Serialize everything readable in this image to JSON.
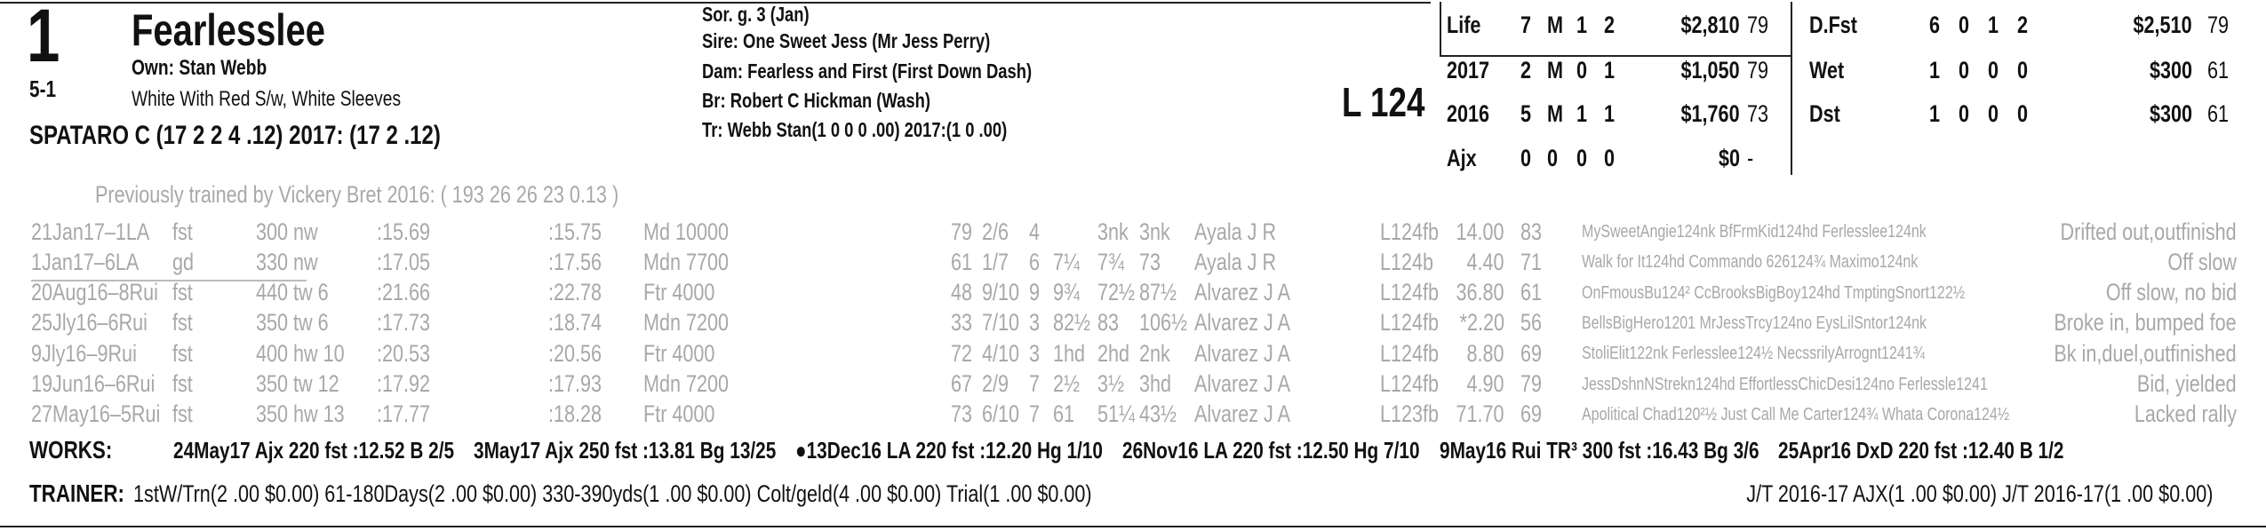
{
  "header": {
    "post": "1",
    "horse": "Fearlesslee",
    "odds": "5-1",
    "owner": "Own: Stan Webb",
    "silks": "White With Red S/w, White Sleeves",
    "jockey": "SPATARO C (17 2 2 4 .12) 2017: (17 2 .12)"
  },
  "breeding": [
    "Sor. g. 3 (Jan)",
    "Sire: One Sweet Jess (Mr Jess Perry)",
    "Dam: Fearless and First (First Down Dash)",
    "Br:   Robert C Hickman (Wash)",
    "Tr:   Webb Stan(1 0 0 0 .00) 2017:(1 0 .00)"
  ],
  "weight": "L 124",
  "record_left": [
    [
      "Life",
      "7",
      "M",
      "1",
      "2",
      "$2,810",
      "79"
    ],
    [
      "2017",
      "2",
      "M",
      "0",
      "1",
      "$1,050",
      "79"
    ],
    [
      "2016",
      "5",
      "M",
      "1",
      "1",
      "$1,760",
      "73"
    ],
    [
      "Ajx",
      "0",
      "0",
      "0",
      "0",
      "$0",
      "-"
    ]
  ],
  "record_right": [
    [
      "D.Fst",
      "6",
      "0",
      "1",
      "2",
      "$2,510",
      "79"
    ],
    [
      "Wet",
      "1",
      "0",
      "0",
      "0",
      "$300",
      "61"
    ],
    [
      "Dst",
      "1",
      "0",
      "0",
      "0",
      "$300",
      "61"
    ]
  ],
  "previous_trainer": "Previously trained by Vickery Bret 2016: ( 193 26 26 23 0.13 )",
  "races": [
    [
      "21Jan17–1LA",
      "fst",
      "300 nw",
      ":15.69",
      ":15.75",
      "Md 10000",
      "79",
      "2/6",
      "4",
      "",
      "3nk",
      "3nk",
      "Ayala J R",
      "L124fb",
      "14.00",
      "83",
      "MySweetAngie124nk BfFrmKid124hd Ferlesslee124nk",
      "Drifted out,outfinishd"
    ],
    [
      "1Jan17–6LA",
      "gd",
      "330 nw",
      ":17.05",
      ":17.56",
      "Mdn 7700",
      "61",
      "1/7",
      "6",
      "7¼",
      "7¾",
      "73",
      "Ayala J R",
      "L124b",
      "4.40",
      "71",
      "Walk for It124hd Commando 626124¾ Maximo124nk",
      "Off slow"
    ],
    [
      "20Aug16–8Rui",
      "fst",
      "440 tw 6",
      ":21.66",
      ":22.78",
      "Ftr 4000",
      "48",
      "9/10",
      "9",
      "9¾",
      "72½",
      "87½",
      "Alvarez J A",
      "L124fb",
      "36.80",
      "61",
      "OnFmousBu124² CcBrooksBigBoy124hd TmptingSnort122½",
      "Off slow, no bid"
    ],
    [
      "25Jly16–6Rui",
      "fst",
      "350 tw 6",
      ":17.73",
      ":18.74",
      "Mdn 7200",
      "33",
      "7/10",
      "3",
      "82½",
      "83",
      "106½",
      "Alvarez J A",
      "L124fb",
      "*2.20",
      "56",
      "BellsBigHero1201 MrJessTrcy124no EysLilSntor124nk",
      "Broke in, bumped foe"
    ],
    [
      "9Jly16–9Rui",
      "fst",
      "400 hw 10",
      ":20.53",
      ":20.56",
      "Ftr 4000",
      "72",
      "4/10",
      "3",
      "1hd",
      "2hd",
      "2nk",
      "Alvarez J A",
      "L124fb",
      "8.80",
      "69",
      "StoliElit122nk Ferlesslee124½ NecssrilyArrognt1241¾",
      "Bk in,duel,outfinished"
    ],
    [
      "19Jun16–6Rui",
      "fst",
      "350 tw 12",
      ":17.92",
      ":17.93",
      "Mdn 7200",
      "67",
      "2/9",
      "7",
      "2½",
      "3½",
      "3hd",
      "Alvarez J A",
      "L124fb",
      "4.90",
      "79",
      "JessDshnNStrekn124hd EffortlessChicDesi124no Ferlessle1241",
      "Bid, yielded"
    ],
    [
      "27May16–5Rui",
      "fst",
      "350 hw 13",
      ":17.77",
      ":18.28",
      "Ftr 4000",
      "73",
      "6/10",
      "7",
      "61",
      "51¼",
      "43½",
      "Alvarez J A",
      "L123fb",
      "71.70",
      "69",
      "Apolitical Chad120²½ Just Call Me Carter124¾ Whata Corona124½",
      "Lacked rally"
    ]
  ],
  "works_label": "WORKS:",
  "works": [
    "24May17 Ajx 220 fst :12.52 B 2/5",
    "3May17 Ajx 250 fst :13.81 Bg 13/25",
    "●13Dec16 LA 220 fst :12.20 Hg 1/10",
    "26Nov16 LA 220 fst :12.50 Hg 7/10",
    "9May16 Rui TR³ 300 fst :16.43 Bg 3/6",
    "25Apr16 DxD 220 fst :12.40 B 1/2"
  ],
  "trainer_label": "TRAINER:",
  "trainer_stats": "1stW/Trn(2 .00 $0.00) 61-180Days(2 .00 $0.00) 330-390yds(1 .00 $0.00) Colt/geld(4 .00 $0.00) Trial(1 .00 $0.00)",
  "jt_stats": "J/T 2016-17 AJX(1 .00 $0.00) J/T 2016-17(1 .00 $0.00)"
}
